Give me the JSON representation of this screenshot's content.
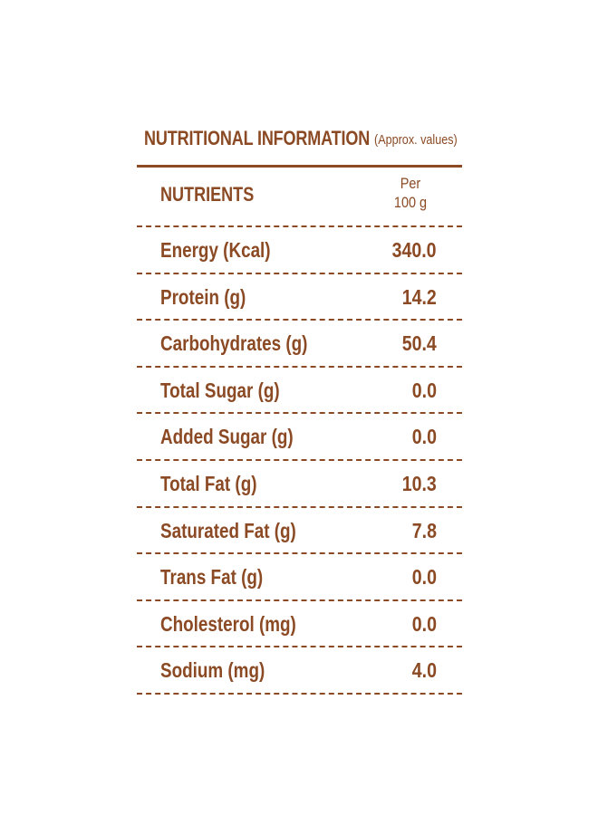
{
  "header": {
    "title": "NUTRITIONAL INFORMATION",
    "subtitle": "(Approx. values)"
  },
  "table": {
    "col_nutrient": "NUTRIENTS",
    "col_value_line1": "Per",
    "col_value_line2": "100 g",
    "rows": [
      {
        "label": "Energy (Kcal)",
        "value": "340.0"
      },
      {
        "label": "Protein (g)",
        "value": "14.2"
      },
      {
        "label": "Carbohydrates (g)",
        "value": "50.4"
      },
      {
        "label": "Total Sugar (g)",
        "value": "0.0"
      },
      {
        "label": "Added Sugar (g)",
        "value": "0.0"
      },
      {
        "label": "Total Fat (g)",
        "value": "10.3"
      },
      {
        "label": "Saturated Fat (g)",
        "value": "7.8"
      },
      {
        "label": "Trans Fat (g)",
        "value": "0.0"
      },
      {
        "label": "Cholesterol (mg)",
        "value": "0.0"
      },
      {
        "label": "Sodium (mg)",
        "value": "4.0"
      }
    ]
  },
  "colors": {
    "text": "#8b4a24",
    "background": "#ffffff"
  }
}
